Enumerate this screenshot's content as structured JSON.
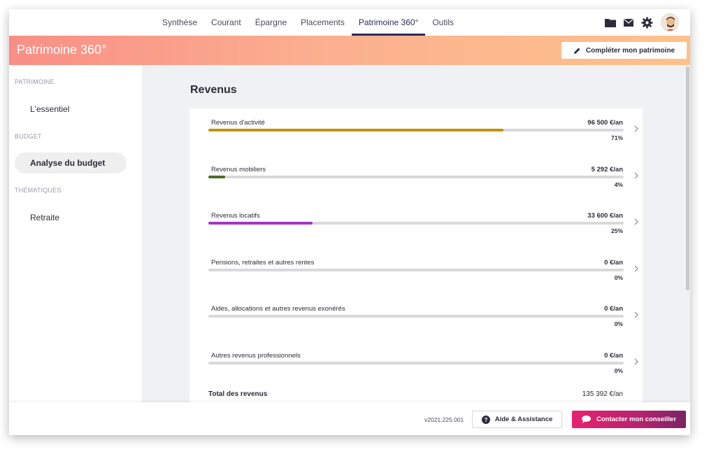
{
  "nav": {
    "tabs": [
      {
        "label": "Synthèse"
      },
      {
        "label": "Courant"
      },
      {
        "label": "Épargne"
      },
      {
        "label": "Placements"
      },
      {
        "label": "Patrimoine 360°",
        "active": true
      },
      {
        "label": "Outils"
      }
    ],
    "icons": [
      "folder-icon",
      "mail-icon",
      "gear-icon",
      "avatar"
    ]
  },
  "banner": {
    "title": "Patrimoine 360°",
    "complete_button": "Compléter mon patrimoine"
  },
  "sidebar": {
    "sections": [
      {
        "heading": "PATRIMOINE",
        "items": [
          {
            "label": "L'essentiel"
          }
        ]
      },
      {
        "heading": "BUDGET",
        "items": [
          {
            "label": "Analyse du budget",
            "active": true
          }
        ]
      },
      {
        "heading": "THÉMATIQUES",
        "items": [
          {
            "label": "Retraite"
          }
        ]
      }
    ]
  },
  "main": {
    "title": "Revenus",
    "rows": [
      {
        "label": "Revenus d'activité",
        "amount": "96 500  €/an",
        "percent": "71%",
        "fill": 0.71,
        "color": "#c0950e"
      },
      {
        "label": "Revenus mobiliers",
        "amount": "5 292  €/an",
        "percent": "4%",
        "fill": 0.04,
        "color": "#4f6b2a"
      },
      {
        "label": "Revenus locatifs",
        "amount": "33 600  €/an",
        "percent": "25%",
        "fill": 0.25,
        "color": "#a435c8"
      },
      {
        "label": "Pensions, retraites et autres rentes",
        "amount": "0  €/an",
        "percent": "0%",
        "fill": 0,
        "color": "#cccccc"
      },
      {
        "label": "Aides, allocations et autres revenus exonérés",
        "amount": "0  €/an",
        "percent": "0%",
        "fill": 0,
        "color": "#cccccc"
      },
      {
        "label": "Autres revenus professionnels",
        "amount": "0  €/an",
        "percent": "0%",
        "fill": 0,
        "color": "#cccccc"
      }
    ],
    "total_label": "Total des revenus",
    "total_amount": "135 392 €/an"
  },
  "footer": {
    "version": "v2021.225.001",
    "help_button": "Aide & Assistance",
    "contact_button": "Contacter mon conseiller"
  }
}
